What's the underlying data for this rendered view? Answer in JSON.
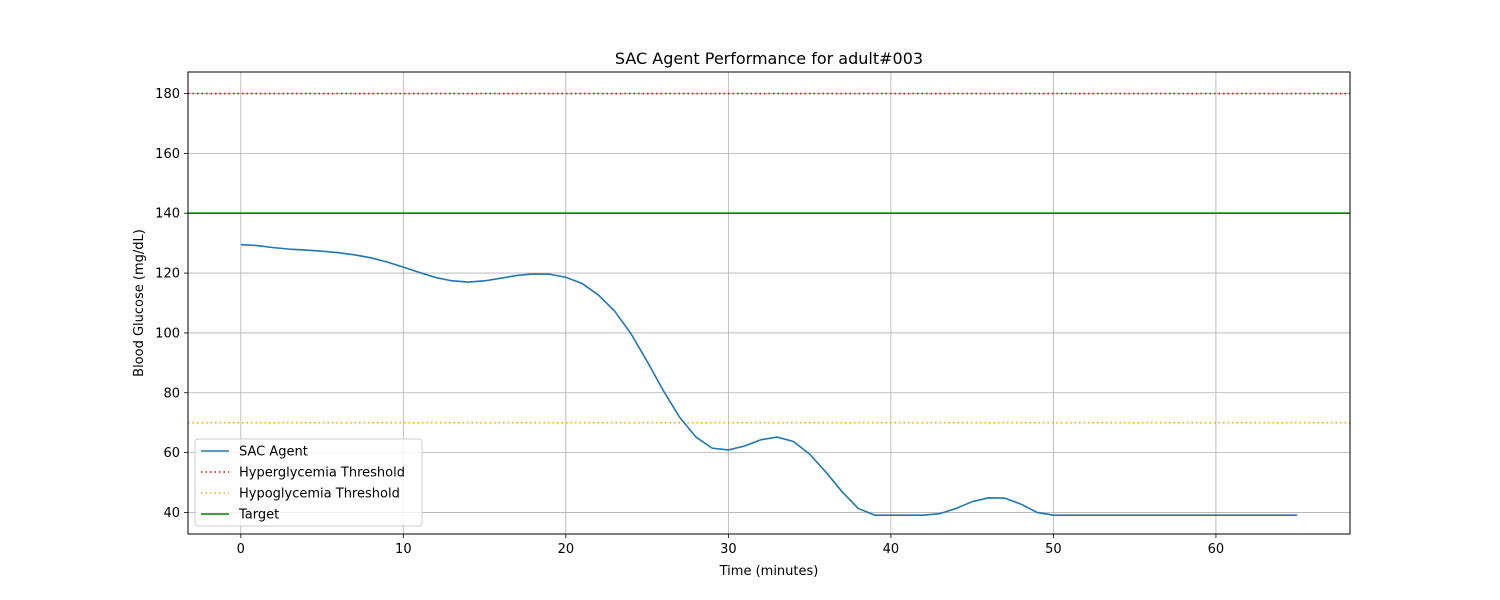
{
  "chart_data": {
    "type": "line",
    "title": "SAC Agent Performance for adult#003",
    "xlabel": "Time (minutes)",
    "ylabel": "Blood Glucose (mg/dL)",
    "xlim": [
      -3.25,
      68.25
    ],
    "ylim": [
      32.8,
      187.2
    ],
    "xticks": [
      0,
      10,
      20,
      30,
      40,
      50,
      60
    ],
    "yticks": [
      40,
      60,
      80,
      100,
      120,
      140,
      160,
      180
    ],
    "grid": true,
    "legend_position": "lower-left",
    "series": [
      {
        "name": "SAC Agent",
        "color": "#1f77b4",
        "style": "solid",
        "x": [
          0,
          1,
          2,
          3,
          4,
          5,
          6,
          7,
          8,
          9,
          10,
          11,
          12,
          13,
          14,
          15,
          16,
          17,
          18,
          19,
          20,
          21,
          22,
          23,
          24,
          25,
          26,
          27,
          28,
          29,
          30,
          31,
          32,
          33,
          34,
          35,
          36,
          37,
          38,
          39,
          40,
          41,
          42,
          43,
          44,
          45,
          46,
          47,
          48,
          49,
          50,
          51,
          52,
          53,
          54,
          55,
          56,
          57,
          58,
          59,
          60,
          61,
          62,
          63,
          64,
          65
        ],
        "y": [
          129.5,
          129.2,
          128.5,
          128.0,
          127.7,
          127.3,
          126.8,
          126.1,
          125.1,
          123.7,
          122.0,
          120.2,
          118.5,
          117.4,
          117.0,
          117.4,
          118.3,
          119.2,
          119.7,
          119.6,
          118.6,
          116.5,
          112.7,
          107.3,
          99.8,
          90.5,
          80.7,
          71.8,
          65.2,
          61.5,
          60.9,
          62.2,
          64.3,
          65.2,
          63.7,
          59.5,
          53.5,
          46.9,
          41.3,
          39.1,
          39.1,
          39.1,
          39.1,
          39.6,
          41.3,
          43.6,
          44.9,
          44.8,
          42.8,
          40.0,
          39.1,
          39.1,
          39.1,
          39.1,
          39.1,
          39.1,
          39.1,
          39.1,
          39.1,
          39.1,
          39.1,
          39.1,
          39.1,
          39.1,
          39.1,
          39.1
        ]
      },
      {
        "name": "Hyperglycemia Threshold",
        "color": "#ff0000",
        "style": "dotted",
        "y_constant": 180
      },
      {
        "name": "Hypoglycemia Threshold",
        "color": "#ffa500",
        "style": "dotted",
        "y_constant": 70
      },
      {
        "name": "Target",
        "color": "#008000",
        "style": "solid",
        "y_constant": 140
      }
    ]
  }
}
